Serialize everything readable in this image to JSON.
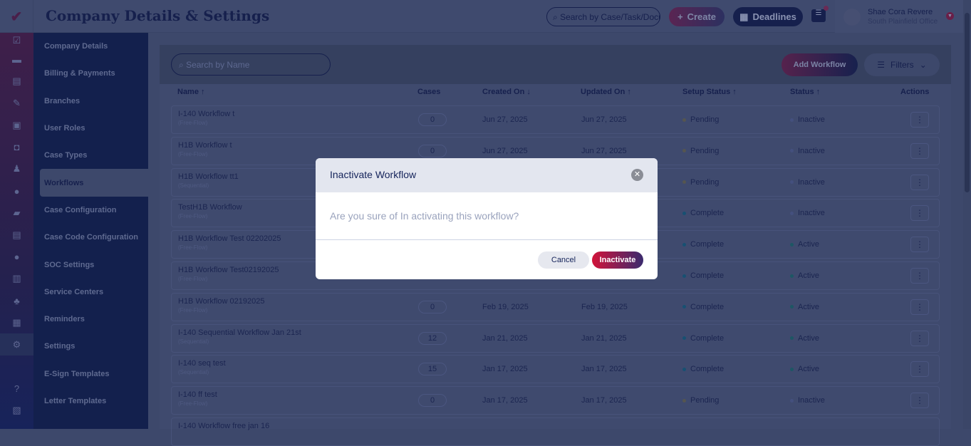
{
  "header": {
    "title": "Company Details & Settings",
    "search_placeholder": "Search by Case/Task/Docu",
    "create_label": "Create",
    "deadlines_label": "Deadlines",
    "user_name": "Shae Cora Revere",
    "user_office": "South Plainfield Office"
  },
  "rail_icons": [
    "checklist-icon",
    "chat-icon",
    "document-icon",
    "edit-document-icon",
    "certificate-icon",
    "clipboard-icon",
    "user-tie-icon",
    "user-icon",
    "folder-icon",
    "notes-icon",
    "user-icon",
    "receipt-icon",
    "team-icon",
    "calendar-grid-icon",
    "gear-icon",
    "",
    "help-icon",
    "book-icon"
  ],
  "submenu": [
    "Company Details",
    "Billing & Payments",
    "Branches",
    "User Roles",
    "Case Types",
    "Workflows",
    "Case Configuration",
    "Case Code Configuration",
    "SOC Settings",
    "Service Centers",
    "Reminders",
    "Settings",
    "E-Sign Templates",
    "Letter Templates"
  ],
  "toolbar": {
    "search_placeholder": "Search by Name",
    "add_workflow": "Add Workflow",
    "filters": "Filters"
  },
  "table": {
    "headers": {
      "name": "Name ↑",
      "cases": "Cases",
      "created": "Created On ↓",
      "updated": "Updated On ↑",
      "setup": "Setup Status ↑",
      "status": "Status ↑",
      "actions": "Actions"
    },
    "rows": [
      {
        "name": "I-140 Workflow t",
        "type": "(Free-Flow)",
        "cases": "0",
        "created": "Jun 27, 2025",
        "updated": "Jun 27, 2025",
        "setup": "Pending",
        "status": "Inactive"
      },
      {
        "name": "H1B Workflow t",
        "type": "(Free-Flow)",
        "cases": "0",
        "created": "Jun 27, 2025",
        "updated": "Jun 27, 2025",
        "setup": "Pending",
        "status": "Inactive"
      },
      {
        "name": "H1B Workflow tt1",
        "type": "(Sequential)",
        "cases": "",
        "created": "",
        "updated": "",
        "setup": "Pending",
        "status": "Inactive"
      },
      {
        "name": "TestH1B Workflow",
        "type": "(Free-Flow)",
        "cases": "",
        "created": "",
        "updated": "",
        "setup": "Complete",
        "status": "Inactive"
      },
      {
        "name": "H1B Workflow Test 02202025",
        "type": "(Free-Flow)",
        "cases": "",
        "created": "",
        "updated": "",
        "setup": "Complete",
        "status": "Active"
      },
      {
        "name": "H1B Workflow Test02192025",
        "type": "(Free-Flow)",
        "cases": "",
        "created": "",
        "updated": "",
        "setup": "Complete",
        "status": "Active"
      },
      {
        "name": "H1B Workflow 02192025",
        "type": "(Free-Flow)",
        "cases": "0",
        "created": "Feb 19, 2025",
        "updated": "Feb 19, 2025",
        "setup": "Complete",
        "status": "Active"
      },
      {
        "name": "I-140 Sequential Workflow Jan 21st",
        "type": "(Sequential)",
        "cases": "12",
        "created": "Jan 21, 2025",
        "updated": "Jan 21, 2025",
        "setup": "Complete",
        "status": "Active"
      },
      {
        "name": "I-140 seq test",
        "type": "(Sequential)",
        "cases": "15",
        "created": "Jan 17, 2025",
        "updated": "Jan 17, 2025",
        "setup": "Complete",
        "status": "Active"
      },
      {
        "name": "I-140 ff test",
        "type": "(Free-Flow)",
        "cases": "0",
        "created": "Jan 17, 2025",
        "updated": "Jan 17, 2025",
        "setup": "Pending",
        "status": "Inactive"
      },
      {
        "name": "I-140 Workflow free jan 16",
        "type": "",
        "cases": "",
        "created": "",
        "updated": "",
        "setup": "",
        "status": ""
      }
    ]
  },
  "modal": {
    "title": "Inactivate Workflow",
    "message": "Are you sure of In activating this workflow?",
    "cancel": "Cancel",
    "confirm": "Inactivate"
  },
  "colors": {
    "brand_red": "#d2144a",
    "navy": "#14235a",
    "pending": "#c9b23a",
    "complete": "#1aa39a",
    "active": "#2bb673",
    "inactive": "#9aa3bd"
  }
}
